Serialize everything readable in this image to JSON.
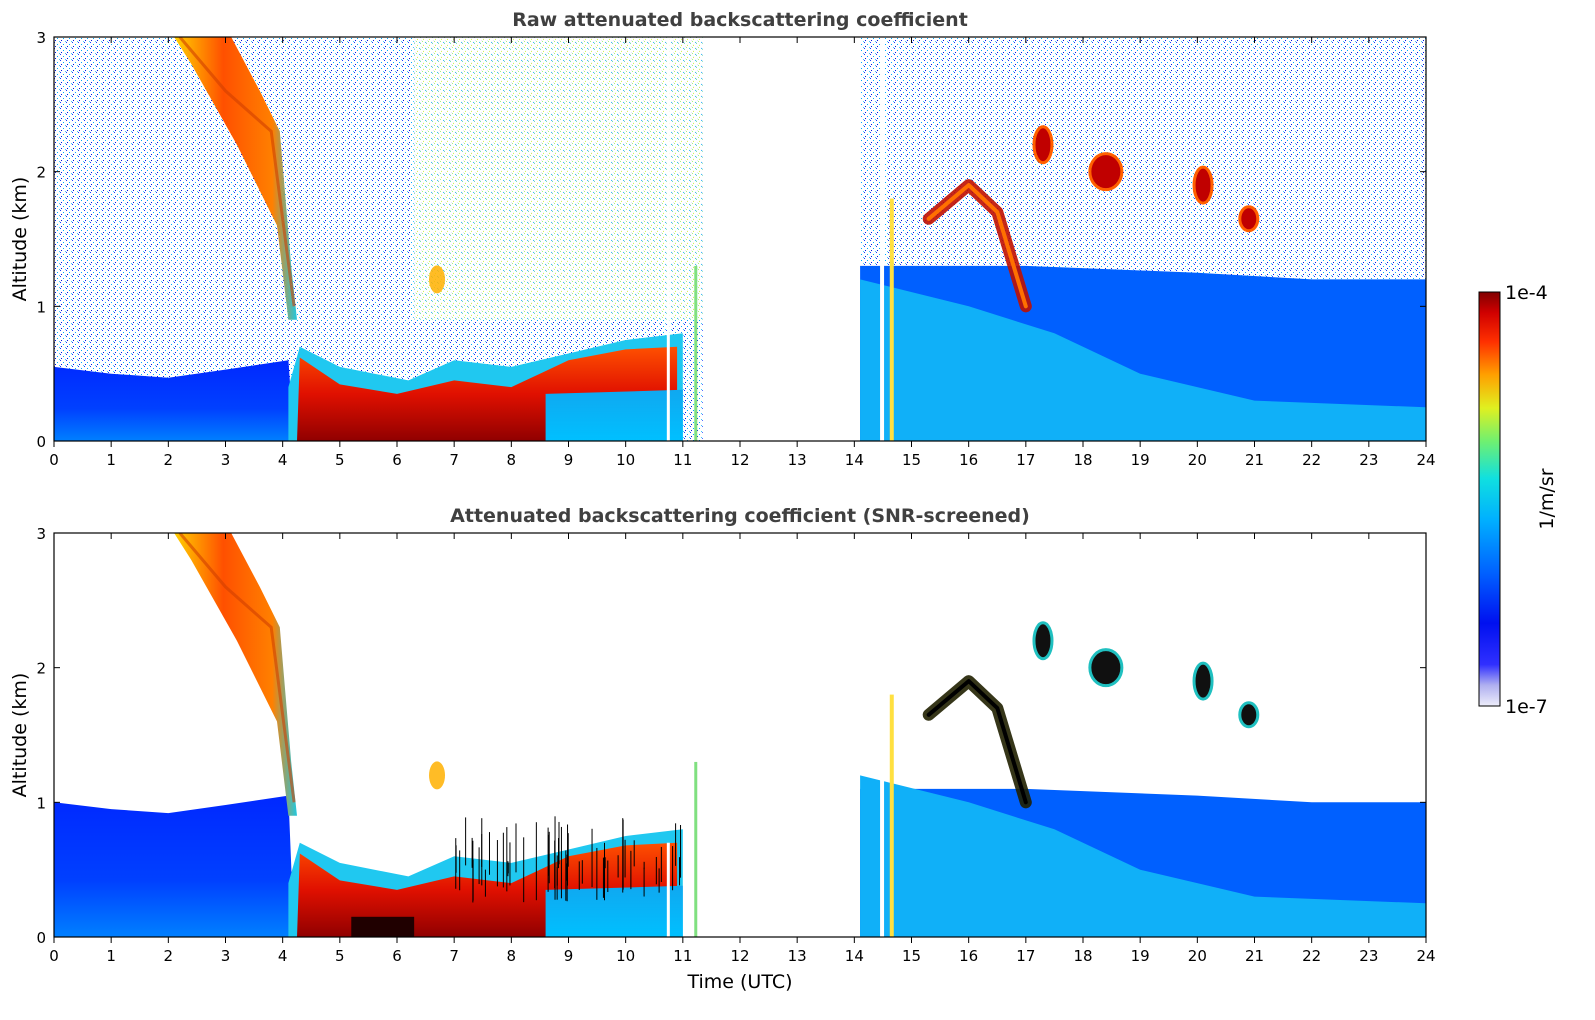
{
  "chart_data": [
    {
      "type": "heatmap",
      "title": "Raw attenuated backscattering coefficient",
      "xlabel": "",
      "ylabel": "Altitude (km)",
      "xlim": [
        0,
        24
      ],
      "ylim": [
        0,
        3
      ],
      "xticks": [
        "0",
        "1",
        "2",
        "3",
        "4",
        "5",
        "6",
        "7",
        "8",
        "9",
        "10",
        "11",
        "12",
        "13",
        "14",
        "15",
        "16",
        "17",
        "18",
        "19",
        "20",
        "21",
        "22",
        "23",
        "24"
      ],
      "yticks": [
        "0",
        "1",
        "2",
        "3"
      ],
      "data_gap_hours": [
        11.35,
        14.1
      ],
      "features": {
        "falling_layer": [
          [
            2.2,
            3.0
          ],
          [
            3.0,
            2.6
          ],
          [
            3.8,
            2.3
          ],
          [
            4.2,
            1.0
          ]
        ],
        "boundary_layer_top": [
          [
            0,
            0.4
          ],
          [
            4.1,
            0.4
          ],
          [
            4.3,
            0.7
          ],
          [
            5,
            0.55
          ],
          [
            6.2,
            0.45
          ],
          [
            7,
            0.6
          ],
          [
            8,
            0.55
          ],
          [
            9,
            0.65
          ],
          [
            10,
            0.75
          ],
          [
            11,
            0.8
          ]
        ],
        "elevated_cloud": [
          [
            15.3,
            1.65
          ],
          [
            16,
            1.9
          ],
          [
            16.5,
            1.7
          ],
          [
            17,
            1.0
          ]
        ],
        "small_clouds": [
          [
            17.3,
            2.2
          ],
          [
            18.4,
            2.0
          ],
          [
            20.1,
            1.9
          ],
          [
            20.9,
            1.65
          ]
        ]
      },
      "colorbar": {
        "min_label": "1e-7",
        "max_label": "1e-4",
        "unit": "1/m/sr"
      }
    },
    {
      "type": "heatmap",
      "title": "Attenuated backscattering coefficient (SNR-screened)",
      "xlabel": "Time (UTC)",
      "ylabel": "Altitude (km)",
      "xlim": [
        0,
        24
      ],
      "ylim": [
        0,
        3
      ],
      "xticks": [
        "0",
        "1",
        "2",
        "3",
        "4",
        "5",
        "6",
        "7",
        "8",
        "9",
        "10",
        "11",
        "12",
        "13",
        "14",
        "15",
        "16",
        "17",
        "18",
        "19",
        "20",
        "21",
        "22",
        "23",
        "24"
      ],
      "yticks": [
        "0",
        "1",
        "2",
        "3"
      ],
      "data_gap_hours": [
        11.35,
        14.1
      ]
    }
  ],
  "colorbar": {
    "max_label": "1e-4",
    "min_label": "1e-7",
    "unit_label": "1/m/sr",
    "colors": [
      "#e8e8f8",
      "#c8c8f0",
      "#8c8cf0",
      "#3a3aff",
      "#0000ee",
      "#0030ff",
      "#0070ff",
      "#00a8ff",
      "#00d0f0",
      "#20e0c0",
      "#70f070",
      "#d8f020",
      "#ffd800",
      "#ff9000",
      "#ff4000",
      "#e00000",
      "#900000"
    ]
  }
}
